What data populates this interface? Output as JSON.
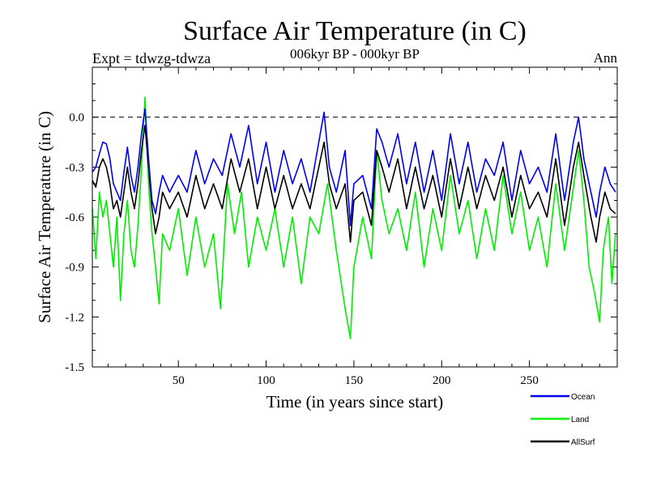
{
  "chart_data": {
    "type": "line",
    "title": "Surface Air Temperature (in C)",
    "subtitle": "006kyr BP - 000kyr BP",
    "left_label": "Expt = tdwzg-tdwza",
    "right_label": "Ann",
    "xlabel": "Time (in years since start)",
    "ylabel": "Surface Air Temperature (in C)",
    "xlim": [
      1,
      300
    ],
    "ylim": [
      -1.5,
      0.3
    ],
    "x_ticks": [
      50,
      100,
      150,
      200,
      250
    ],
    "x_tick_labels": [
      "50",
      "100",
      "150",
      "200",
      "250"
    ],
    "y_ticks": [
      -1.5,
      -1.2,
      -0.9,
      -0.6,
      -0.3,
      0.0
    ],
    "y_tick_labels": [
      "-1.5",
      "-1.2",
      "-0.9",
      "-0.6",
      "-0.3",
      "0.0"
    ],
    "zero_line": true,
    "legend_position": "bottom-right",
    "series": [
      {
        "name": "Ocean",
        "color": "#0000ee",
        "keypoints": [
          [
            1,
            -0.33
          ],
          [
            3,
            -0.3
          ],
          [
            5,
            -0.22
          ],
          [
            7,
            -0.15
          ],
          [
            9,
            -0.16
          ],
          [
            11,
            -0.25
          ],
          [
            13,
            -0.4
          ],
          [
            15,
            -0.45
          ],
          [
            17,
            -0.5
          ],
          [
            19,
            -0.33
          ],
          [
            21,
            -0.18
          ],
          [
            23,
            -0.35
          ],
          [
            25,
            -0.45
          ],
          [
            27,
            -0.3
          ],
          [
            29,
            -0.1
          ],
          [
            31,
            0.05
          ],
          [
            33,
            -0.25
          ],
          [
            35,
            -0.5
          ],
          [
            37,
            -0.58
          ],
          [
            39,
            -0.45
          ],
          [
            41,
            -0.35
          ],
          [
            45,
            -0.45
          ],
          [
            50,
            -0.35
          ],
          [
            55,
            -0.45
          ],
          [
            60,
            -0.2
          ],
          [
            65,
            -0.4
          ],
          [
            70,
            -0.25
          ],
          [
            75,
            -0.35
          ],
          [
            80,
            -0.1
          ],
          [
            85,
            -0.3
          ],
          [
            90,
            -0.05
          ],
          [
            95,
            -0.4
          ],
          [
            100,
            -0.15
          ],
          [
            105,
            -0.45
          ],
          [
            110,
            -0.2
          ],
          [
            115,
            -0.4
          ],
          [
            120,
            -0.25
          ],
          [
            125,
            -0.45
          ],
          [
            130,
            -0.15
          ],
          [
            133,
            0.03
          ],
          [
            136,
            -0.3
          ],
          [
            140,
            -0.45
          ],
          [
            145,
            -0.2
          ],
          [
            148,
            -0.65
          ],
          [
            150,
            -0.4
          ],
          [
            155,
            -0.35
          ],
          [
            160,
            -0.55
          ],
          [
            163,
            -0.07
          ],
          [
            166,
            -0.15
          ],
          [
            170,
            -0.3
          ],
          [
            175,
            -0.1
          ],
          [
            180,
            -0.4
          ],
          [
            185,
            -0.15
          ],
          [
            190,
            -0.45
          ],
          [
            195,
            -0.2
          ],
          [
            200,
            -0.5
          ],
          [
            205,
            -0.1
          ],
          [
            210,
            -0.4
          ],
          [
            215,
            -0.15
          ],
          [
            220,
            -0.45
          ],
          [
            225,
            -0.25
          ],
          [
            230,
            -0.35
          ],
          [
            235,
            -0.15
          ],
          [
            240,
            -0.5
          ],
          [
            245,
            -0.2
          ],
          [
            250,
            -0.4
          ],
          [
            255,
            -0.3
          ],
          [
            260,
            -0.45
          ],
          [
            265,
            -0.1
          ],
          [
            270,
            -0.5
          ],
          [
            275,
            -0.15
          ],
          [
            278,
            0.0
          ],
          [
            281,
            -0.25
          ],
          [
            285,
            -0.45
          ],
          [
            288,
            -0.6
          ],
          [
            290,
            -0.45
          ],
          [
            293,
            -0.3
          ],
          [
            296,
            -0.4
          ],
          [
            299,
            -0.45
          ]
        ]
      },
      {
        "name": "Land",
        "color": "#00ee00",
        "keypoints": [
          [
            1,
            -0.55
          ],
          [
            3,
            -0.85
          ],
          [
            5,
            -0.45
          ],
          [
            7,
            -0.6
          ],
          [
            9,
            -0.5
          ],
          [
            11,
            -0.7
          ],
          [
            13,
            -0.9
          ],
          [
            15,
            -0.6
          ],
          [
            17,
            -1.1
          ],
          [
            19,
            -0.7
          ],
          [
            21,
            -0.5
          ],
          [
            23,
            -0.8
          ],
          [
            25,
            -0.9
          ],
          [
            27,
            -0.65
          ],
          [
            29,
            -0.3
          ],
          [
            31,
            0.12
          ],
          [
            33,
            -0.4
          ],
          [
            35,
            -0.7
          ],
          [
            37,
            -0.9
          ],
          [
            39,
            -1.12
          ],
          [
            41,
            -0.7
          ],
          [
            45,
            -0.8
          ],
          [
            50,
            -0.55
          ],
          [
            55,
            -0.95
          ],
          [
            60,
            -0.6
          ],
          [
            65,
            -0.9
          ],
          [
            70,
            -0.7
          ],
          [
            74,
            -1.15
          ],
          [
            78,
            -0.4
          ],
          [
            82,
            -0.7
          ],
          [
            86,
            -0.45
          ],
          [
            90,
            -0.9
          ],
          [
            95,
            -0.6
          ],
          [
            100,
            -0.8
          ],
          [
            105,
            -0.55
          ],
          [
            110,
            -0.9
          ],
          [
            115,
            -0.6
          ],
          [
            120,
            -1.0
          ],
          [
            125,
            -0.6
          ],
          [
            130,
            -0.7
          ],
          [
            135,
            -0.4
          ],
          [
            140,
            -0.8
          ],
          [
            145,
            -1.15
          ],
          [
            148,
            -1.33
          ],
          [
            150,
            -0.9
          ],
          [
            155,
            -0.6
          ],
          [
            160,
            -0.85
          ],
          [
            163,
            -0.2
          ],
          [
            166,
            -0.5
          ],
          [
            170,
            -0.7
          ],
          [
            175,
            -0.55
          ],
          [
            180,
            -0.8
          ],
          [
            185,
            -0.45
          ],
          [
            190,
            -0.9
          ],
          [
            195,
            -0.55
          ],
          [
            200,
            -0.8
          ],
          [
            205,
            -0.35
          ],
          [
            210,
            -0.7
          ],
          [
            215,
            -0.5
          ],
          [
            220,
            -0.85
          ],
          [
            225,
            -0.55
          ],
          [
            230,
            -0.8
          ],
          [
            235,
            -0.35
          ],
          [
            240,
            -0.7
          ],
          [
            245,
            -0.45
          ],
          [
            250,
            -0.8
          ],
          [
            255,
            -0.6
          ],
          [
            260,
            -0.9
          ],
          [
            265,
            -0.4
          ],
          [
            270,
            -0.8
          ],
          [
            274,
            -0.5
          ],
          [
            278,
            -0.2
          ],
          [
            281,
            -0.5
          ],
          [
            284,
            -0.9
          ],
          [
            287,
            -1.05
          ],
          [
            290,
            -1.23
          ],
          [
            292,
            -0.8
          ],
          [
            295,
            -0.6
          ],
          [
            297,
            -1.0
          ],
          [
            299,
            -0.7
          ]
        ]
      },
      {
        "name": "AllSurf",
        "color": "#000000",
        "keypoints": [
          [
            1,
            -0.38
          ],
          [
            3,
            -0.42
          ],
          [
            5,
            -0.3
          ],
          [
            7,
            -0.25
          ],
          [
            9,
            -0.3
          ],
          [
            11,
            -0.4
          ],
          [
            13,
            -0.55
          ],
          [
            15,
            -0.5
          ],
          [
            17,
            -0.6
          ],
          [
            19,
            -0.45
          ],
          [
            21,
            -0.3
          ],
          [
            23,
            -0.45
          ],
          [
            25,
            -0.55
          ],
          [
            27,
            -0.4
          ],
          [
            29,
            -0.2
          ],
          [
            31,
            -0.05
          ],
          [
            33,
            -0.3
          ],
          [
            35,
            -0.55
          ],
          [
            37,
            -0.7
          ],
          [
            39,
            -0.6
          ],
          [
            41,
            -0.45
          ],
          [
            45,
            -0.55
          ],
          [
            50,
            -0.45
          ],
          [
            55,
            -0.6
          ],
          [
            60,
            -0.35
          ],
          [
            65,
            -0.55
          ],
          [
            70,
            -0.4
          ],
          [
            75,
            -0.55
          ],
          [
            80,
            -0.25
          ],
          [
            85,
            -0.45
          ],
          [
            90,
            -0.25
          ],
          [
            95,
            -0.55
          ],
          [
            100,
            -0.3
          ],
          [
            105,
            -0.55
          ],
          [
            110,
            -0.35
          ],
          [
            115,
            -0.55
          ],
          [
            120,
            -0.4
          ],
          [
            125,
            -0.55
          ],
          [
            130,
            -0.3
          ],
          [
            133,
            -0.15
          ],
          [
            136,
            -0.4
          ],
          [
            140,
            -0.55
          ],
          [
            145,
            -0.4
          ],
          [
            148,
            -0.75
          ],
          [
            150,
            -0.5
          ],
          [
            155,
            -0.45
          ],
          [
            160,
            -0.65
          ],
          [
            163,
            -0.2
          ],
          [
            166,
            -0.3
          ],
          [
            170,
            -0.45
          ],
          [
            175,
            -0.25
          ],
          [
            180,
            -0.55
          ],
          [
            185,
            -0.3
          ],
          [
            190,
            -0.55
          ],
          [
            195,
            -0.35
          ],
          [
            200,
            -0.6
          ],
          [
            205,
            -0.25
          ],
          [
            210,
            -0.55
          ],
          [
            215,
            -0.3
          ],
          [
            220,
            -0.55
          ],
          [
            225,
            -0.35
          ],
          [
            230,
            -0.5
          ],
          [
            235,
            -0.3
          ],
          [
            240,
            -0.6
          ],
          [
            245,
            -0.35
          ],
          [
            250,
            -0.55
          ],
          [
            255,
            -0.45
          ],
          [
            260,
            -0.6
          ],
          [
            265,
            -0.25
          ],
          [
            270,
            -0.65
          ],
          [
            275,
            -0.3
          ],
          [
            278,
            -0.15
          ],
          [
            281,
            -0.35
          ],
          [
            285,
            -0.6
          ],
          [
            288,
            -0.75
          ],
          [
            290,
            -0.6
          ],
          [
            293,
            -0.45
          ],
          [
            296,
            -0.55
          ],
          [
            299,
            -0.58
          ]
        ]
      }
    ]
  }
}
